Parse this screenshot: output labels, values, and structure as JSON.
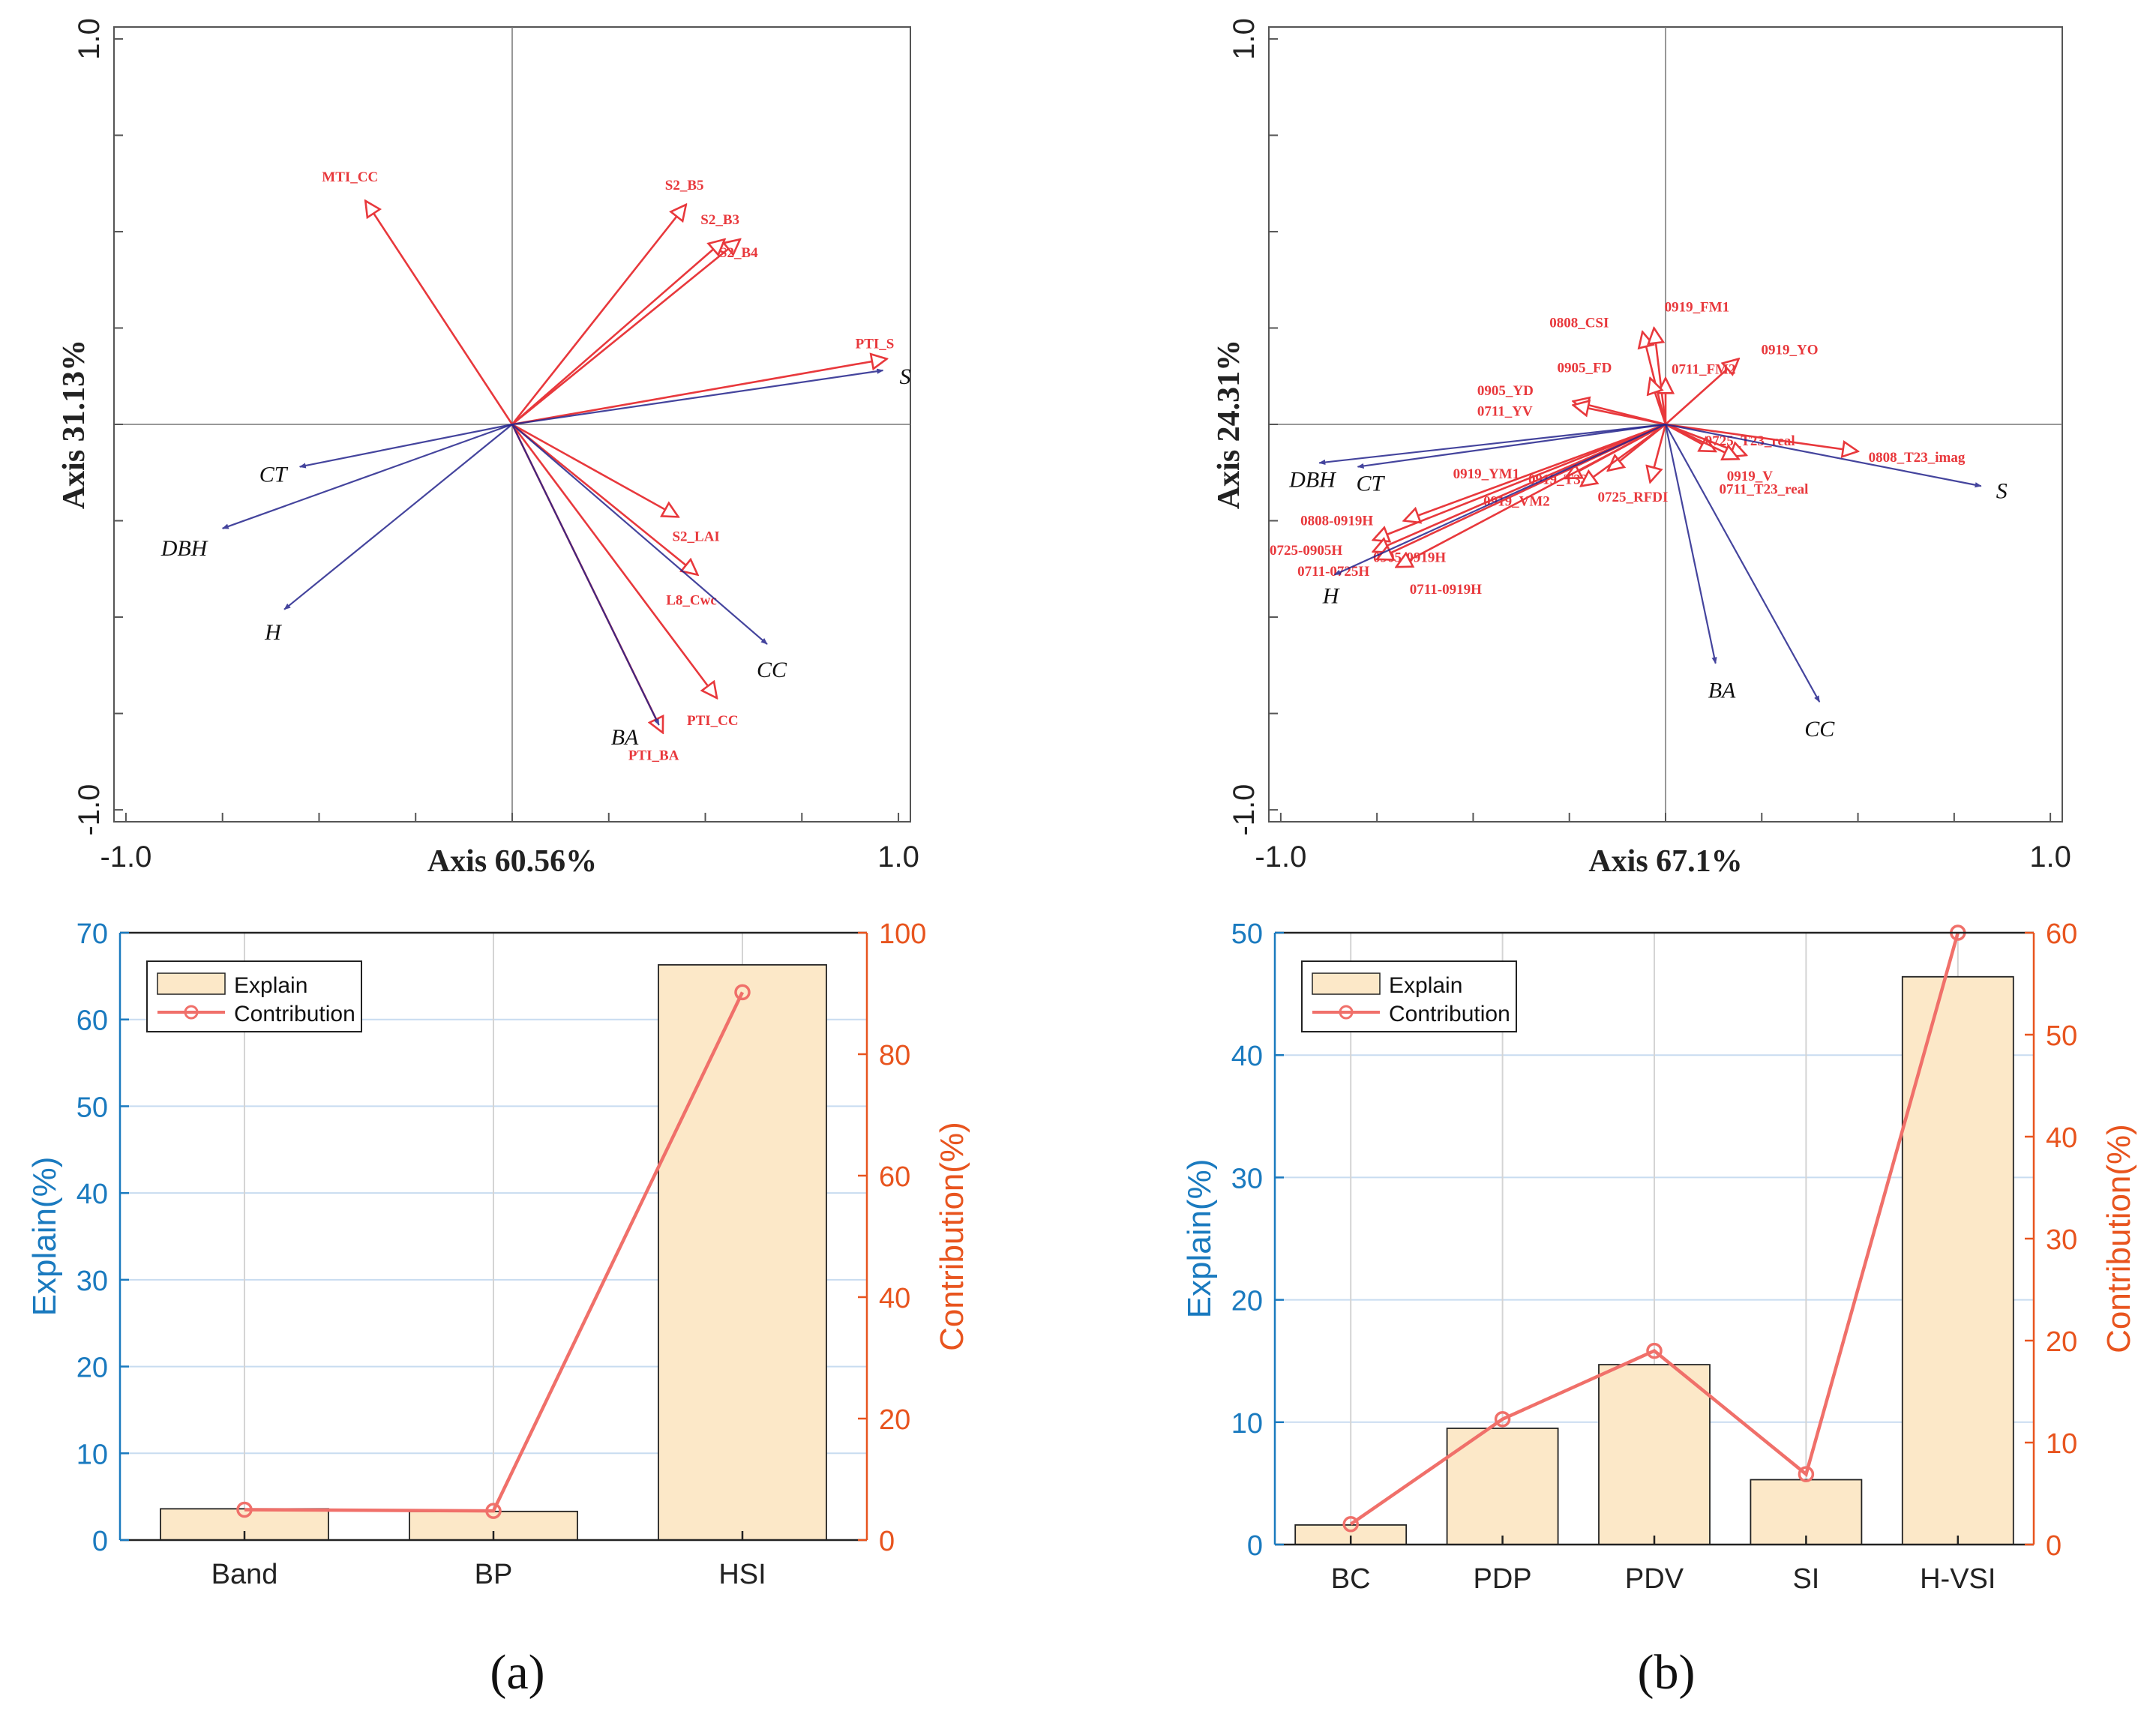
{
  "colors": {
    "response_arrow": "#24248c",
    "explanatory_arrow": "#e8383c",
    "bar_fill": "#fce8c8",
    "bar_stroke": "#222222",
    "contribution_line": "#f0706a",
    "left_axis": "#1a7abf",
    "right_axis": "#e8541e",
    "grid": "#c8dcf0"
  },
  "panel_labels": [
    "(a)",
    "(b)"
  ],
  "chart_data": [
    {
      "type": "biplot",
      "panel": "a",
      "xlabel": "Axis 60.56%",
      "ylabel": "Axis 31.13%",
      "xlim": [
        -1.0,
        1.0
      ],
      "ylim": [
        -1.0,
        1.0
      ],
      "x_tick_labels": [
        "-1.0",
        "1.0"
      ],
      "y_tick_labels": [
        "1.0",
        "-1.0"
      ],
      "response_vectors": [
        {
          "label": "S",
          "x": 0.96,
          "y": 0.14
        },
        {
          "label": "CT",
          "x": -0.55,
          "y": -0.11
        },
        {
          "label": "DBH",
          "x": -0.75,
          "y": -0.27
        },
        {
          "label": "H",
          "x": -0.59,
          "y": -0.48
        },
        {
          "label": "CC",
          "x": 0.66,
          "y": -0.57
        },
        {
          "label": "BA",
          "x": 0.38,
          "y": -0.78
        }
      ],
      "explanatory_vectors": [
        {
          "label": "MTI_CC",
          "x": -0.38,
          "y": 0.58
        },
        {
          "label": "S2_B5",
          "x": 0.45,
          "y": 0.57
        },
        {
          "label": "S2_B3",
          "x": 0.55,
          "y": 0.48
        },
        {
          "label": "S2_B4",
          "x": 0.59,
          "y": 0.48
        },
        {
          "label": "PTI_S",
          "x": 0.97,
          "y": 0.17
        },
        {
          "label": "S2_LAI",
          "x": 0.43,
          "y": -0.24
        },
        {
          "label": "L8_Cwc",
          "x": 0.48,
          "y": -0.39
        },
        {
          "label": "PTI_CC",
          "x": 0.53,
          "y": -0.71
        },
        {
          "label": "PTI_BA",
          "x": 0.39,
          "y": -0.8
        }
      ]
    },
    {
      "type": "biplot",
      "panel": "b",
      "xlabel": "Axis 67.1%",
      "ylabel": "Axis 24.31%",
      "xlim": [
        -1.0,
        1.0
      ],
      "ylim": [
        -1.0,
        1.0
      ],
      "x_tick_labels": [
        "-1.0",
        "1.0"
      ],
      "y_tick_labels": [
        "1.0",
        "-1.0"
      ],
      "response_vectors": [
        {
          "label": "S",
          "x": 0.82,
          "y": -0.16
        },
        {
          "label": "DBH",
          "x": -0.9,
          "y": -0.1
        },
        {
          "label": "CT",
          "x": -0.8,
          "y": -0.11
        },
        {
          "label": "H",
          "x": -0.86,
          "y": -0.39
        },
        {
          "label": "BA",
          "x": 0.13,
          "y": -0.62
        },
        {
          "label": "CC",
          "x": 0.4,
          "y": -0.72
        }
      ],
      "explanatory_vectors": [
        {
          "label": "0808_CSI",
          "x": -0.06,
          "y": 0.24
        },
        {
          "label": "0919_FM1",
          "x": -0.03,
          "y": 0.25
        },
        {
          "label": "0919_YO",
          "x": 0.19,
          "y": 0.17
        },
        {
          "label": "0711_FM2",
          "x": 0.0,
          "y": 0.12
        },
        {
          "label": "0905_FD",
          "x": -0.04,
          "y": 0.12
        },
        {
          "label": "0905_YD",
          "x": -0.24,
          "y": 0.06
        },
        {
          "label": "0711_YV",
          "x": -0.24,
          "y": 0.05
        },
        {
          "label": "0725_T23_real",
          "x": 0.13,
          "y": -0.07
        },
        {
          "label": "0808_T23_imag",
          "x": 0.5,
          "y": -0.07
        },
        {
          "label": "0919_V",
          "x": 0.21,
          "y": -0.08
        },
        {
          "label": "0711_T23_real",
          "x": 0.19,
          "y": -0.09
        },
        {
          "label": "0725_RFDI",
          "x": -0.04,
          "y": -0.15
        },
        {
          "label": "0919_YM1",
          "x": -0.26,
          "y": -0.14
        },
        {
          "label": "0919_T33",
          "x": -0.15,
          "y": -0.12
        },
        {
          "label": "0919_VM2",
          "x": -0.22,
          "y": -0.16
        },
        {
          "label": "0808-0919H",
          "x": -0.68,
          "y": -0.25
        },
        {
          "label": "0725-0905H",
          "x": -0.76,
          "y": -0.3
        },
        {
          "label": "0905-0919H",
          "x": -0.76,
          "y": -0.33
        },
        {
          "label": "0711-0725H",
          "x": -0.75,
          "y": -0.35
        },
        {
          "label": "0711-0919H",
          "x": -0.7,
          "y": -0.37
        }
      ]
    },
    {
      "type": "bar+line",
      "panel": "a",
      "categories": [
        "Band",
        "BP",
        "HSI"
      ],
      "series": [
        {
          "name": "Explain",
          "axis": "left",
          "values": [
            3.6,
            3.3,
            66.3
          ]
        },
        {
          "name": "Contribution",
          "axis": "right",
          "values": [
            5.0,
            4.8,
            90.2
          ]
        }
      ],
      "ylabel": "Explain(%)",
      "y2label": "Contribution(%)",
      "ylim": [
        0,
        70
      ],
      "y2lim": [
        0,
        100
      ],
      "y_ticks": [
        0,
        10,
        20,
        30,
        40,
        50,
        60,
        70
      ],
      "y2_ticks": [
        0,
        20,
        40,
        60,
        80,
        100
      ],
      "legend": "top-left"
    },
    {
      "type": "bar+line",
      "panel": "b",
      "categories": [
        "BC",
        "PDP",
        "PDV",
        "SI",
        "H-VSI"
      ],
      "series": [
        {
          "name": "Explain",
          "axis": "left",
          "values": [
            1.6,
            9.5,
            14.7,
            5.3,
            46.4
          ]
        },
        {
          "name": "Contribution",
          "axis": "right",
          "values": [
            2.0,
            12.3,
            19.0,
            6.9,
            60.0
          ]
        }
      ],
      "ylabel": "Explain(%)",
      "y2label": "Contribution(%)",
      "ylim": [
        0,
        50
      ],
      "y2lim": [
        0,
        60
      ],
      "y_ticks": [
        0,
        10,
        20,
        30,
        40,
        50
      ],
      "y2_ticks": [
        0,
        10,
        20,
        30,
        40,
        50,
        60
      ],
      "legend": "top-left"
    }
  ]
}
